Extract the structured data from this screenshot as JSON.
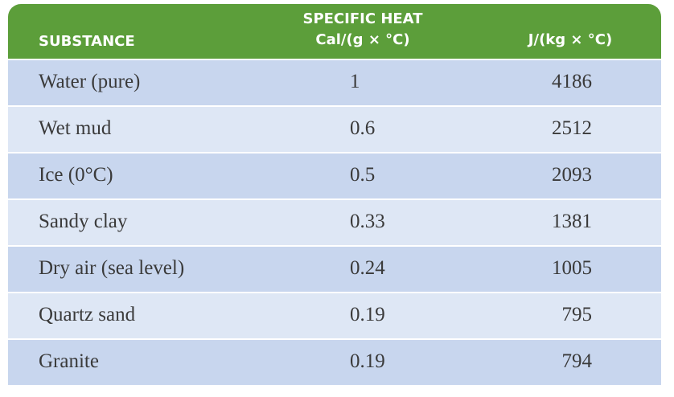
{
  "header": {
    "substance": "SUBSTANCE",
    "specific_heat": "SPECIFIC HEAT",
    "cal_unit": "Cal/(g × °C)",
    "j_unit": "J/(kg × °C)"
  },
  "rows": [
    {
      "substance": "Water (pure)",
      "cal": "1",
      "j": "4186"
    },
    {
      "substance": "Wet mud",
      "cal": "0.6",
      "j": "2512"
    },
    {
      "substance": "Ice (0°C)",
      "cal": "0.5",
      "j": "2093"
    },
    {
      "substance": "Sandy clay",
      "cal": "0.33",
      "j": "1381"
    },
    {
      "substance": "Dry air (sea level)",
      "cal": "0.24",
      "j": "1005"
    },
    {
      "substance": "Quartz sand",
      "cal": "0.19",
      "j": "795"
    },
    {
      "substance": "Granite",
      "cal": "0.19",
      "j": "794"
    }
  ],
  "colors": {
    "header_bg": "#5c9e3a",
    "row_dark": "#c8d6ee",
    "row_light": "#dee7f5"
  }
}
